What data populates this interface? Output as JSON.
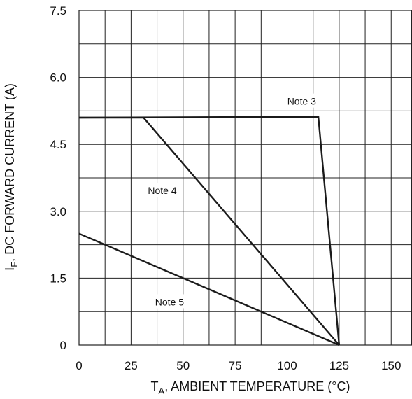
{
  "chart_data": {
    "type": "line",
    "title": "",
    "xlabel_main": "T",
    "xlabel_sub": "A",
    "xlabel_rest": ", AMBIENT TEMPERATURE (°C)",
    "ylabel_main": "I",
    "ylabel_sub": "F",
    "ylabel_rest": ", DC FORWARD CURRENT (A)",
    "xlim": [
      0,
      160
    ],
    "ylim": [
      0,
      7.5
    ],
    "x_grid_step": 12.5,
    "y_grid_step": 0.75,
    "x_ticks": [
      0,
      25,
      50,
      75,
      100,
      125,
      150
    ],
    "x_tick_labels": [
      "0",
      "25",
      "50",
      "75",
      "100",
      "125",
      "150"
    ],
    "y_ticks": [
      0,
      1.5,
      3.0,
      4.5,
      6.0,
      7.5
    ],
    "y_tick_labels": [
      "0",
      "1.5",
      "3.0",
      "4.5",
      "6.0",
      "7.5"
    ],
    "grid": true,
    "line_color": "#1a1a1a",
    "series": [
      {
        "name": "Note 3",
        "x": [
          0,
          115,
          125
        ],
        "y": [
          5.1,
          5.12,
          0
        ]
      },
      {
        "name": "Note 4",
        "x": [
          0,
          31,
          125
        ],
        "y": [
          5.1,
          5.1,
          0
        ]
      },
      {
        "name": "Note 5",
        "x": [
          0,
          125
        ],
        "y": [
          2.5,
          0
        ]
      }
    ],
    "annotations": [
      {
        "text": "Note 3",
        "x": 107,
        "y": 5.45
      },
      {
        "text": "Note 4",
        "x": 40,
        "y": 3.45
      },
      {
        "text": "Note 5",
        "x": 43.5,
        "y": 0.95
      }
    ]
  }
}
